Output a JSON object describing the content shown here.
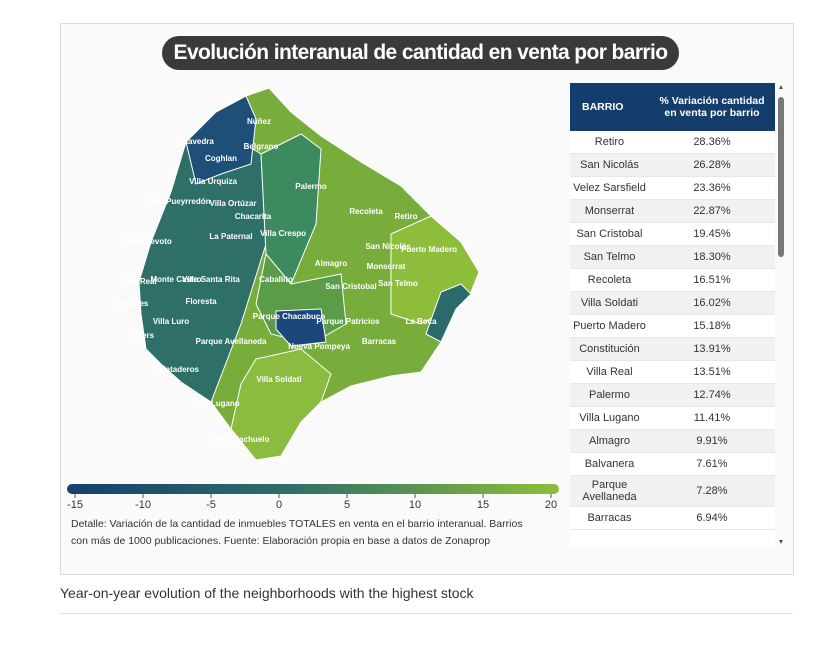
{
  "figure": {
    "title": "Evolución interanual de cantidad en venta por barrio",
    "map_labels": [
      "Núñez",
      "Saavedra",
      "Coghlan",
      "Belgrano",
      "Villa Urquiza",
      "Villa Pueyrredón",
      "Villa Ortúzar",
      "Palermo",
      "Chacarita",
      "Recoleta",
      "Retiro",
      "Villa Devoto",
      "La Paternal",
      "Villa Crespo",
      "San Nicolás",
      "Puerto Madero",
      "Almagro",
      "Monserrat",
      "Villa Real",
      "Monte Castro",
      "Villa Santa Rita",
      "Caballito",
      "San Cristobal",
      "San Telmo",
      "Versalles",
      "Floresta",
      "Parque Chacabuco",
      "Parque Patricios",
      "La Boca",
      "Villa Luro",
      "Liniers",
      "Parque Avellaneda",
      "Nueva Pompeya",
      "Barracas",
      "Mataderos",
      "Villa Soldati",
      "Villa Lugano",
      "Villa Riachuelo"
    ],
    "colorbar": {
      "ticks": [
        -15,
        -10,
        -5,
        0,
        5,
        10,
        15,
        20
      ],
      "range": [
        -15,
        20
      ]
    },
    "note": "Detalle: Variación de la cantidad de inmuebles TOTALES en venta en el barrio interanual. Barrios con más de 1000 publicaciones. Fuente: Elaboración propia en base a datos de Zonaprop",
    "table": {
      "header": [
        "BARRIO",
        "% Variación cantidad en venta por barrio"
      ],
      "rows": [
        [
          "Retiro",
          "28.36%"
        ],
        [
          "San Nicolás",
          "26.28%"
        ],
        [
          "Velez Sarsfield",
          "23.36%"
        ],
        [
          "Monserrat",
          "22.87%"
        ],
        [
          "San Cristobal",
          "19.45%"
        ],
        [
          "San Telmo",
          "18.30%"
        ],
        [
          "Recoleta",
          "16.51%"
        ],
        [
          "Villa Soldati",
          "16.02%"
        ],
        [
          "Puerto Madero",
          "15.18%"
        ],
        [
          "Constitución",
          "13.91%"
        ],
        [
          "Villa Real",
          "13.51%"
        ],
        [
          "Palermo",
          "12.74%"
        ],
        [
          "Villa Lugano",
          "11.41%"
        ],
        [
          "Almagro",
          "9.91%"
        ],
        [
          "Balvanera",
          "7.61%"
        ],
        [
          "Parque Avellaneda",
          "7.28%"
        ],
        [
          "Barracas",
          "6.94%"
        ]
      ]
    }
  },
  "caption": "Year-on-year evolution of the neighborhoods with the highest stock"
}
